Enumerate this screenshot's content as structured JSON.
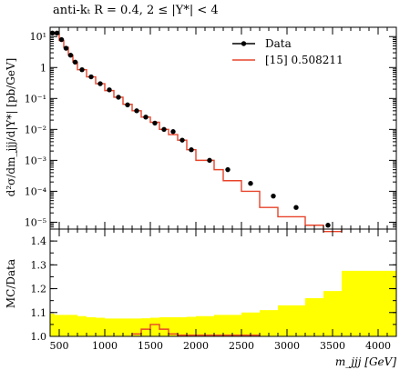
{
  "chart_data": [
    {
      "type": "line",
      "panel": "main",
      "title": "anti-kₜ R = 0.4, 2 ≤ |Y*| < 4",
      "xlabel": "",
      "ylabel": "d²σ/dm_jjj/d|Y*| [pb/GeV]",
      "xlim": [
        400,
        4200
      ],
      "ylim": [
        6e-06,
        20
      ],
      "yscale": "log",
      "yticks": [
        1e-05,
        0.0001,
        0.001,
        0.01,
        0.1,
        1,
        10
      ],
      "yticklabels": [
        "10⁻⁵",
        "10⁻⁴",
        "10⁻³",
        "10⁻²",
        "10⁻¹",
        "1",
        "10¹"
      ],
      "legend": {
        "placement": "top-right",
        "entries": [
          "Data",
          "[15] 0.508211"
        ]
      },
      "bin_edges": [
        400,
        450,
        500,
        550,
        600,
        650,
        700,
        800,
        900,
        1000,
        1100,
        1200,
        1300,
        1400,
        1500,
        1600,
        1700,
        1800,
        1900,
        2000,
        2200,
        2300,
        2500,
        2700,
        2900,
        3200,
        3400,
        3600
      ],
      "series": [
        {
          "name": "Data",
          "marker": "dot",
          "color": "#000000",
          "x": [
            425,
            475,
            525,
            575,
            625,
            675,
            750,
            850,
            950,
            1050,
            1150,
            1250,
            1350,
            1450,
            1550,
            1650,
            1750,
            1850,
            1950,
            2150,
            2350,
            2600,
            2850,
            3100,
            3450
          ],
          "values": [
            13,
            13,
            8,
            4.2,
            2.5,
            1.5,
            0.85,
            0.5,
            0.3,
            0.19,
            0.11,
            0.062,
            0.04,
            0.025,
            0.016,
            0.01,
            0.0085,
            0.0045,
            0.0022,
            0.001,
            0.0005,
            0.00018,
            7e-05,
            3e-05,
            8e-06
          ]
        },
        {
          "name": "[15] 0.508211",
          "style": "histogram",
          "color": "#e8432a",
          "values": [
            14,
            12,
            7.5,
            4.5,
            2.5,
            1.5,
            0.85,
            0.5,
            0.3,
            0.18,
            0.11,
            0.065,
            0.04,
            0.025,
            0.017,
            0.01,
            0.0068,
            0.0045,
            0.0022,
            0.001,
            0.0005,
            0.00022,
            0.0001,
            3e-05,
            1.5e-05,
            8e-06,
            5e-06
          ]
        }
      ]
    },
    {
      "type": "line",
      "panel": "ratio",
      "xlabel": "m_jjj [GeV]",
      "ylabel": "MC/Data",
      "xlim": [
        400,
        4200
      ],
      "ylim": [
        1.0,
        1.45
      ],
      "xticks": [
        500,
        1000,
        1500,
        2000,
        2500,
        3000,
        3500,
        4000
      ],
      "yticks": [
        1.0,
        1.1,
        1.2,
        1.3,
        1.4
      ],
      "yticklabels": [
        "1.0",
        "1.1",
        "1.2",
        "1.3",
        "1.4"
      ],
      "series": [
        {
          "name": "uncertainty band",
          "style": "band",
          "color": "#ffff00",
          "x": [
            400,
            450,
            700,
            800,
            900,
            1000,
            1100,
            1200,
            1300,
            1400,
            1500,
            1600,
            1700,
            1800,
            1900,
            2000,
            2200,
            2300,
            2500,
            2700,
            2900,
            3200,
            3400,
            3600,
            4200
          ],
          "upper": [
            1.095,
            1.09,
            1.085,
            1.08,
            1.078,
            1.075,
            1.075,
            1.075,
            1.075,
            1.076,
            1.078,
            1.08,
            1.08,
            1.08,
            1.082,
            1.085,
            1.09,
            1.09,
            1.1,
            1.11,
            1.13,
            1.16,
            1.19,
            1.275,
            1.275
          ]
        },
        {
          "name": "[15] 0.508211 / Data",
          "style": "histogram",
          "color": "#e8432a",
          "bin_edges": [
            1300,
            1400,
            1500,
            1600,
            1700,
            1800,
            2700
          ],
          "values": [
            1.01,
            1.03,
            1.05,
            1.03,
            1.01,
            1.005
          ]
        }
      ]
    }
  ]
}
